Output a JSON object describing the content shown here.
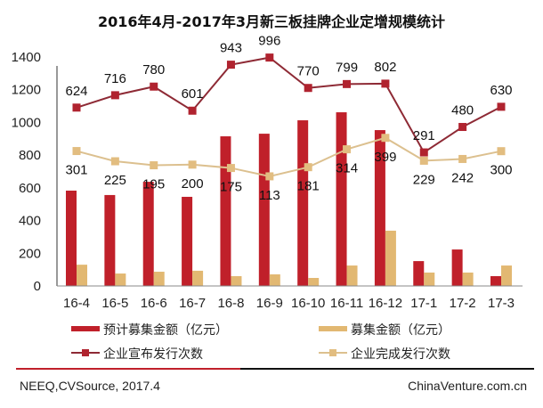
{
  "chart_data": {
    "type": "bar",
    "title": "2016年4月-2017年3月新三板挂牌企业定增规模统计",
    "xlabel": "",
    "ylabel": "",
    "ylim": [
      0,
      1400
    ],
    "yticks": [
      0,
      200,
      400,
      600,
      800,
      1000,
      1200,
      1400
    ],
    "secondary_ylim": [
      0,
      1400
    ],
    "grid": false,
    "legend_position": "bottom",
    "categories": [
      "16-4",
      "16-5",
      "16-6",
      "16-7",
      "16-8",
      "16-9",
      "16-10",
      "16-11",
      "16-12",
      "17-1",
      "17-2",
      "17-3"
    ],
    "series": [
      {
        "name": "预计募集金额（亿元）",
        "kind": "bar",
        "color": "#c0202a",
        "axis": "primary",
        "values": [
          583,
          556,
          637,
          545,
          915,
          931,
          1013,
          1062,
          953,
          152,
          223,
          60
        ]
      },
      {
        "name": "募集金额（亿元）",
        "kind": "bar",
        "color": "#e2b872",
        "axis": "primary",
        "values": [
          130,
          76,
          87,
          93,
          60,
          71,
          49,
          125,
          338,
          82,
          82,
          125
        ]
      },
      {
        "name": "企业宣布发行次数",
        "kind": "line",
        "color": "#b0232f",
        "line_color": "#8e2a35",
        "axis": "secondary",
        "values": [
          624,
          716,
          780,
          601,
          943,
          996,
          770,
          799,
          802,
          291,
          480,
          630
        ],
        "labels": [
          "624",
          "716",
          "780",
          "601",
          "943",
          "996",
          "770",
          "799",
          "802",
          "291",
          "480",
          "630"
        ]
      },
      {
        "name": "企业完成发行次数",
        "kind": "line",
        "color": "#e2bd80",
        "line_color": "#dcc08f",
        "axis": "secondary",
        "values": [
          301,
          225,
          195,
          200,
          175,
          113,
          181,
          314,
          399,
          229,
          242,
          300
        ],
        "labels": [
          "301",
          "225",
          "195",
          "200",
          "175",
          "113",
          "181",
          "314",
          "399",
          "229",
          "242",
          "300"
        ]
      }
    ]
  },
  "footer": {
    "source": "NEEQ,CVSource, 2017.4",
    "site": "ChinaVenture.com.cn",
    "rule_colors": [
      "#c0202a",
      "#111111"
    ]
  }
}
